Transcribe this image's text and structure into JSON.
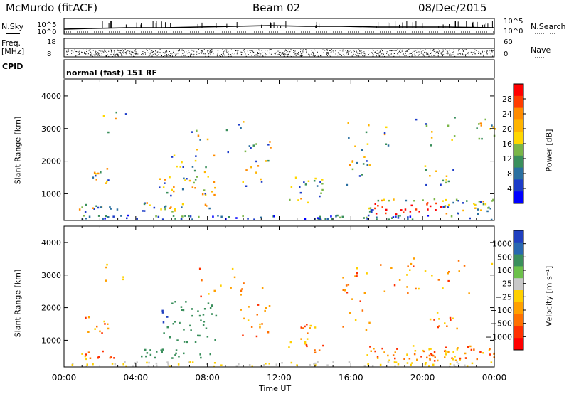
{
  "header": {
    "station": "McMurdo (fitACF)",
    "beam": "Beam 02",
    "date": "08/Dec/2015"
  },
  "top_panels": {
    "nsky_label": "N.Sky",
    "nsearch_label": "N.Search",
    "noise_ticks": [
      "10^5",
      "10^0"
    ],
    "freq_label": "Freq.",
    "freq_unit": "[MHz]",
    "freq_ticks": [
      "18",
      "8"
    ],
    "nave_label": "Nave",
    "nave_ticks": [
      "60",
      "0"
    ],
    "cpid_label": "CPID",
    "cpid_value": "normal (fast) 151 RF"
  },
  "chart_data": [
    {
      "type": "heatmap",
      "name": "power",
      "ylabel": "Slant Range [km]",
      "ylim": [
        180,
        4500
      ],
      "yticks": [
        1000,
        2000,
        3000,
        4000
      ],
      "xlim": [
        0,
        24
      ],
      "colorbar": {
        "label": "Power [dB]",
        "ticks": [
          "28",
          "24",
          "20",
          "16",
          "12",
          "8",
          "4"
        ],
        "colors": [
          "#ff0000",
          "#ff3c00",
          "#ff8c00",
          "#ffb400",
          "#ffd700",
          "#7ab648",
          "#3a8f5c",
          "#2a6fa0",
          "#1c3cc8",
          "#0000ff"
        ]
      }
    },
    {
      "type": "heatmap",
      "name": "velocity",
      "ylabel": "Slant Range [km]",
      "ylim": [
        180,
        4500
      ],
      "yticks": [
        1000,
        2000,
        3000,
        4000
      ],
      "xlim": [
        0,
        24
      ],
      "xlabel": "Time UT",
      "xticks": [
        "00:00",
        "04:00",
        "08:00",
        "12:00",
        "16:00",
        "20:00",
        "00:00"
      ],
      "colorbar": {
        "label": "Velocity [m s⁻¹]",
        "ticks": [
          "1000",
          "500",
          "100",
          "25",
          "−25",
          "−100",
          "−500",
          "−1000"
        ],
        "colors": [
          "#2040c0",
          "#2868b0",
          "#3a8f5c",
          "#6cc04a",
          "#c8c8c8",
          "#ffd000",
          "#ffa000",
          "#ff7000",
          "#ff3000",
          "#ff0000"
        ]
      }
    }
  ]
}
